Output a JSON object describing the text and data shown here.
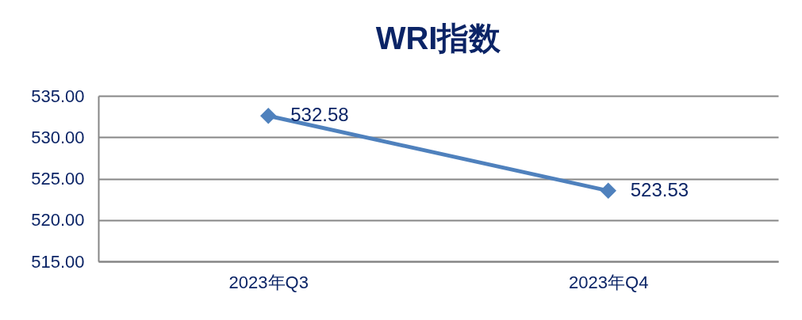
{
  "chart_data": {
    "type": "line",
    "title": "WRI指数",
    "categories": [
      "2023年Q3",
      "2023年Q4"
    ],
    "series": [
      {
        "color": "#4f81bd",
        "values": [
          532.58,
          523.53
        ]
      }
    ],
    "ylim": [
      515,
      535
    ],
    "yticks": [
      {
        "value": 515,
        "label": "515.00"
      },
      {
        "value": 520,
        "label": "520.00"
      },
      {
        "value": 525,
        "label": "525.00"
      },
      {
        "value": 530,
        "label": "530.00"
      },
      {
        "value": 535,
        "label": "535.00"
      }
    ],
    "grid": "y",
    "marker": "diamond",
    "line_style": "solid",
    "data_labels": true
  }
}
